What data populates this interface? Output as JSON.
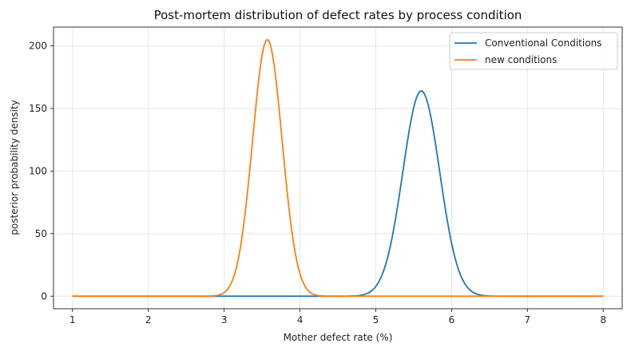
{
  "chart_data": {
    "type": "line",
    "title": "Post-mortem distribution of defect rates by process condition",
    "xlabel": "Mother defect rate (%)",
    "ylabel": "posterior probability density",
    "xlim": [
      0.75,
      8.25
    ],
    "ylim": [
      -10,
      215
    ],
    "xticks": [
      1,
      2,
      3,
      4,
      5,
      6,
      7,
      8
    ],
    "yticks": [
      0,
      50,
      100,
      150,
      200
    ],
    "grid": true,
    "legend_position": "top-right",
    "series": [
      {
        "name": "Conventional Conditions",
        "color": "#1f77b4",
        "distribution": "normal",
        "mean": 5.6,
        "sd": 0.243,
        "peak_density": 164,
        "x_range": [
          1,
          8
        ]
      },
      {
        "name": "new conditions",
        "color": "#ff7f0e",
        "distribution": "normal",
        "mean": 3.57,
        "sd": 0.195,
        "peak_density": 205,
        "x_range": [
          1,
          8
        ]
      }
    ]
  }
}
